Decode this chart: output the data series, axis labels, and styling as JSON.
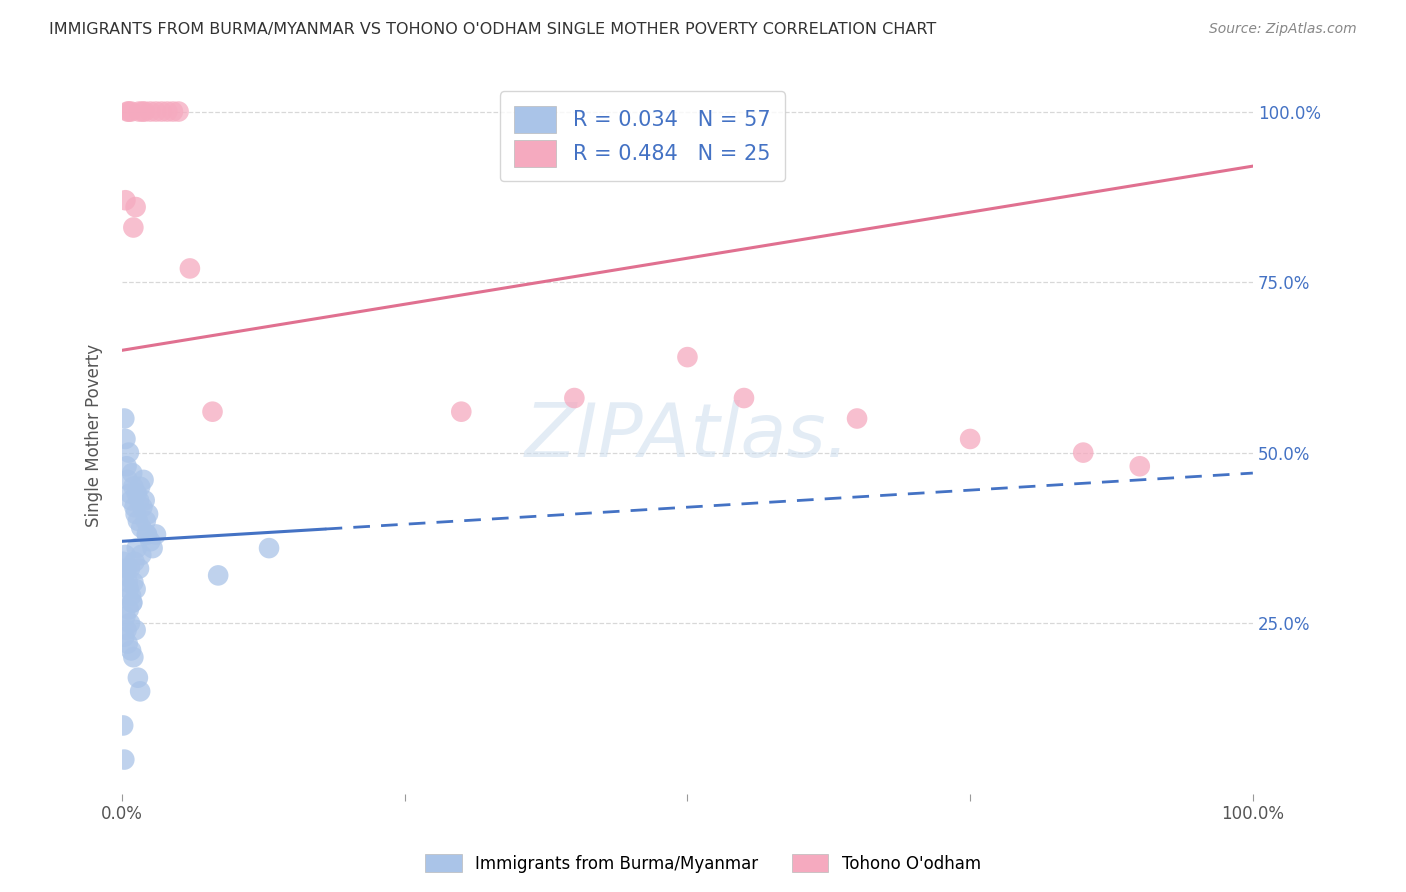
{
  "title": "IMMIGRANTS FROM BURMA/MYANMAR VS TOHONO O'ODHAM SINGLE MOTHER POVERTY CORRELATION CHART",
  "source": "Source: ZipAtlas.com",
  "ylabel": "Single Mother Poverty",
  "blue_label": "Immigrants from Burma/Myanmar",
  "pink_label": "Tohono O'odham",
  "blue_R": 0.034,
  "blue_N": 57,
  "pink_R": 0.484,
  "pink_N": 25,
  "blue_color": "#aac4e8",
  "pink_color": "#f5aabf",
  "blue_line_color": "#4472c4",
  "pink_line_color": "#e07090",
  "right_ytick_color": "#4472c4",
  "grid_color": "#d8d8d8",
  "background_color": "#ffffff",
  "xlim": [
    0,
    100
  ],
  "ylim": [
    0,
    105
  ],
  "blue_line_y0": 37.0,
  "blue_line_y100": 47.0,
  "blue_solid_end": 18.0,
  "pink_line_y0": 65.0,
  "pink_line_y100": 92.0,
  "blue_points_x": [
    0.2,
    0.3,
    0.4,
    0.5,
    0.6,
    0.7,
    0.8,
    0.9,
    1.0,
    1.1,
    1.2,
    1.3,
    1.4,
    1.5,
    1.6,
    1.7,
    1.8,
    1.9,
    2.0,
    2.1,
    2.2,
    2.3,
    2.5,
    2.7,
    3.0,
    0.1,
    0.2,
    0.3,
    0.4,
    0.5,
    0.6,
    0.7,
    0.8,
    0.9,
    1.0,
    1.1,
    1.2,
    1.3,
    1.5,
    1.7,
    0.2,
    0.3,
    0.4,
    0.5,
    0.6,
    0.7,
    0.8,
    0.9,
    1.0,
    1.2,
    1.4,
    1.6,
    8.5,
    13.0,
    0.1,
    0.2,
    2.2
  ],
  "blue_points_y": [
    55.0,
    52.0,
    48.0,
    46.0,
    50.0,
    44.0,
    43.0,
    47.0,
    45.0,
    42.0,
    41.0,
    44.0,
    40.0,
    43.0,
    45.0,
    39.0,
    42.0,
    46.0,
    43.0,
    40.0,
    38.0,
    41.0,
    37.0,
    36.0,
    38.0,
    34.0,
    32.0,
    35.0,
    33.0,
    31.0,
    30.0,
    33.0,
    29.0,
    28.0,
    31.0,
    34.0,
    30.0,
    36.0,
    33.0,
    35.0,
    23.0,
    26.0,
    24.0,
    22.0,
    27.0,
    25.0,
    21.0,
    28.0,
    20.0,
    24.0,
    17.0,
    15.0,
    32.0,
    36.0,
    10.0,
    5.0,
    38.0
  ],
  "pink_points_x": [
    0.3,
    0.5,
    0.6,
    0.8,
    1.0,
    1.2,
    1.5,
    1.8,
    2.0,
    2.5,
    3.0,
    3.5,
    4.0,
    4.5,
    5.0,
    6.0,
    8.0,
    30.0,
    40.0,
    50.0,
    55.0,
    65.0,
    75.0,
    85.0,
    90.0
  ],
  "pink_points_y": [
    87.0,
    100.0,
    100.0,
    100.0,
    83.0,
    86.0,
    100.0,
    100.0,
    100.0,
    100.0,
    100.0,
    100.0,
    100.0,
    100.0,
    100.0,
    77.0,
    56.0,
    56.0,
    58.0,
    64.0,
    58.0,
    55.0,
    52.0,
    50.0,
    48.0
  ]
}
